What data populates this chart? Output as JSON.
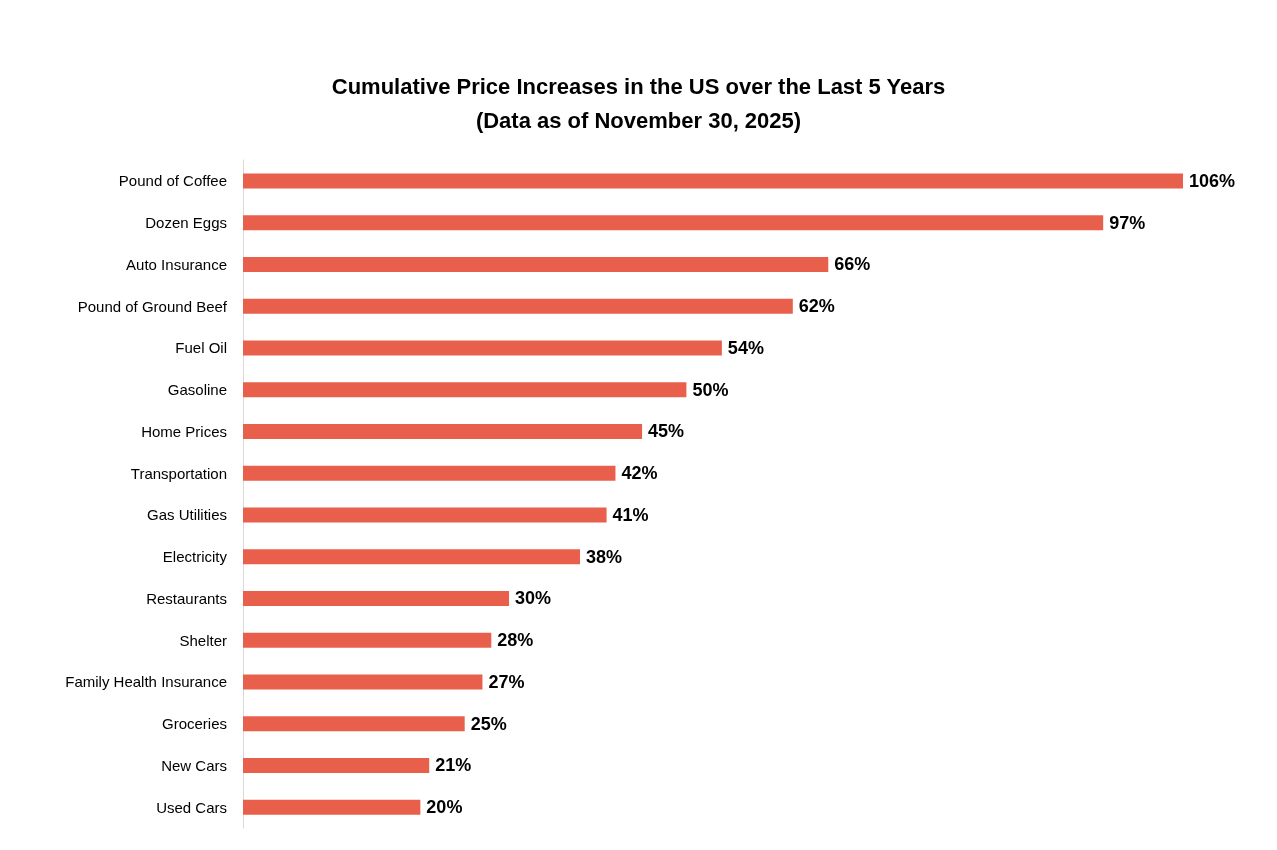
{
  "chart_data": {
    "type": "bar",
    "orientation": "horizontal",
    "title": "Cumulative Price Increases in the US over the Last 5 Years",
    "subtitle": "(Data as of November 30, 2025)",
    "categories": [
      "Pound of Coffee",
      "Dozen Eggs",
      "Auto Insurance",
      "Pound of Ground Beef",
      "Fuel Oil",
      "Gasoline",
      "Home Prices",
      "Transportation",
      "Gas Utilities",
      "Electricity",
      "Restaurants",
      "Shelter",
      "Family Health Insurance",
      "Groceries",
      "New Cars",
      "Used Cars"
    ],
    "values": [
      106,
      97,
      66,
      62,
      54,
      50,
      45,
      42,
      41,
      38,
      30,
      28,
      27,
      25,
      21,
      20
    ],
    "value_labels": [
      "106%",
      "97%",
      "66%",
      "62%",
      "54%",
      "50%",
      "45%",
      "42%",
      "41%",
      "38%",
      "30%",
      "28%",
      "27%",
      "25%",
      "21%",
      "20%"
    ],
    "color": "#e8604c"
  }
}
